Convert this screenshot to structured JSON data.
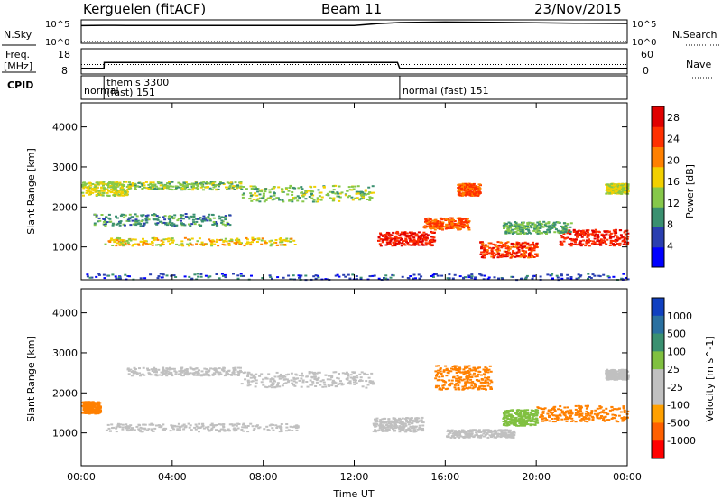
{
  "header": {
    "station": "Kerguelen (fitACF)",
    "beam": "Beam 11",
    "date": "23/Nov/2015"
  },
  "panels": {
    "nsky_label": "N.Sky",
    "nsearch_label": "N.Search",
    "nsky_ticks": [
      "10^5",
      "10^0"
    ],
    "nsearch_ticks": [
      "10^5",
      "10^0"
    ],
    "freq_label": [
      "Freq.",
      "[MHz]"
    ],
    "freq_ticks": [
      "18",
      "8"
    ],
    "nave_label": "Nave",
    "nave_ticks": [
      "60",
      "0"
    ],
    "cpid_label": "CPID",
    "cpid_segments": [
      {
        "label": "normal",
        "start_hour": 0.0,
        "end_hour": 1.0
      },
      {
        "label": "themis 3300",
        "label2": "(fast) 151",
        "start_hour": 1.0,
        "end_hour": 14.0
      },
      {
        "label": "normal (fast) 151",
        "start_hour": 14.0,
        "end_hour": 24.0
      }
    ]
  },
  "colors": {
    "power_scale": [
      "#0000ff",
      "#2a3fb0",
      "#3a9070",
      "#86c84a",
      "#f2d000",
      "#ff8000",
      "#ff3000",
      "#e00000"
    ],
    "velocity_scale": [
      "#1040c0",
      "#2a70a0",
      "#3a9070",
      "#80c040",
      "#c0c0c0",
      "#c0c0c0",
      "#ffa000",
      "#ff6000",
      "#ff0000"
    ],
    "ground_scatter": "#c0c0c0"
  },
  "chart_data": [
    {
      "type": "line",
      "title": "N.Sky / N.Search",
      "x": [
        0,
        1,
        2,
        4,
        6,
        8,
        10,
        12,
        13,
        14,
        16,
        18,
        20,
        22,
        24
      ],
      "series": [
        {
          "name": "N.Sky",
          "values": [
            10000,
            12000,
            11000,
            11000,
            11000,
            11000,
            11000,
            11000,
            30000,
            60000,
            80000,
            70000,
            50000,
            40000,
            35000
          ]
        },
        {
          "name": "N.Search",
          "values": [
            1,
            1,
            1,
            1,
            1,
            1,
            1,
            1,
            1,
            1,
            1,
            1,
            1,
            1,
            1
          ]
        }
      ],
      "ylabel": "N.Sky",
      "yscale": "log"
    },
    {
      "type": "line",
      "title": "Freq. / Nave",
      "x": [
        0,
        1,
        1.01,
        13.9,
        14,
        24
      ],
      "series": [
        {
          "name": "Freq.",
          "values": [
            10,
            10,
            12.5,
            12.5,
            10,
            10
          ]
        },
        {
          "name": "Nave",
          "values": [
            22,
            22,
            22,
            22,
            22,
            22
          ]
        }
      ],
      "ylabel": "Freq. [MHz]",
      "ylim": [
        8,
        18
      ],
      "y2lim": [
        0,
        60
      ]
    },
    {
      "type": "heatmap",
      "title": "Power",
      "xlabel": "",
      "ylabel": "Slant Range [km]",
      "xlim": [
        0,
        24
      ],
      "ylim": [
        180,
        4600
      ],
      "xticks": [
        "00:00",
        "04:00",
        "08:00",
        "12:00",
        "16:00",
        "20:00",
        "00:00"
      ],
      "yticks": [
        1000,
        2000,
        3000,
        4000
      ],
      "colorbar_label": "Power [dB]",
      "colorbar_ticks": [
        4,
        8,
        12,
        16,
        20,
        24,
        28
      ],
      "colorbar_range": [
        0,
        30
      ],
      "features": [
        {
          "x0": 0.0,
          "x1": 2.0,
          "y0": 2300,
          "y1": 2650,
          "value": 16
        },
        {
          "x0": 2.0,
          "x1": 7.0,
          "y0": 2450,
          "y1": 2650,
          "value": 14
        },
        {
          "x0": 7.0,
          "x1": 12.8,
          "y0": 2150,
          "y1": 2550,
          "value": 14
        },
        {
          "x0": 0.5,
          "x1": 6.5,
          "y0": 1550,
          "y1": 1850,
          "value": 10
        },
        {
          "x0": 1.0,
          "x1": 9.5,
          "y0": 1050,
          "y1": 1250,
          "value": 18
        },
        {
          "x0": 13.0,
          "x1": 15.5,
          "y0": 1050,
          "y1": 1400,
          "value": 28
        },
        {
          "x0": 15.0,
          "x1": 17.0,
          "y0": 1450,
          "y1": 1750,
          "value": 24
        },
        {
          "x0": 16.5,
          "x1": 17.5,
          "y0": 2300,
          "y1": 2600,
          "value": 24
        },
        {
          "x0": 17.5,
          "x1": 20.0,
          "y0": 750,
          "y1": 1150,
          "value": 26
        },
        {
          "x0": 21.0,
          "x1": 24.0,
          "y0": 1050,
          "y1": 1450,
          "value": 28
        },
        {
          "x0": 18.5,
          "x1": 21.5,
          "y0": 1350,
          "y1": 1650,
          "value": 12
        },
        {
          "x0": 23.0,
          "x1": 24.0,
          "y0": 2350,
          "y1": 2600,
          "value": 16
        },
        {
          "x0": 0.0,
          "x1": 24.0,
          "y0": 200,
          "y1": 350,
          "value": 6
        }
      ]
    },
    {
      "type": "heatmap",
      "title": "Velocity",
      "xlabel": "Time UT",
      "ylabel": "Slant Range [km]",
      "xlim": [
        0,
        24
      ],
      "ylim": [
        180,
        4600
      ],
      "xticks": [
        "00:00",
        "04:00",
        "08:00",
        "12:00",
        "16:00",
        "20:00",
        "00:00"
      ],
      "yticks": [
        1000,
        2000,
        3000,
        4000
      ],
      "colorbar_label": "Velocity [m s^-1]",
      "colorbar_ticks": [
        "1000",
        "500",
        "100",
        "25",
        "-25",
        "-100",
        "-500",
        "-1000"
      ],
      "features": [
        {
          "x0": 0.0,
          "x1": 0.8,
          "y0": 1500,
          "y1": 1800,
          "value": -300
        },
        {
          "x0": 2.0,
          "x1": 7.0,
          "y0": 2450,
          "y1": 2650,
          "value": 0
        },
        {
          "x0": 7.0,
          "x1": 12.8,
          "y0": 2150,
          "y1": 2550,
          "value": 0
        },
        {
          "x0": 1.0,
          "x1": 9.5,
          "y0": 1050,
          "y1": 1250,
          "value": 0
        },
        {
          "x0": 12.8,
          "x1": 15.0,
          "y0": 1050,
          "y1": 1400,
          "value": 0
        },
        {
          "x0": 15.5,
          "x1": 18.0,
          "y0": 2100,
          "y1": 2700,
          "value": -150
        },
        {
          "x0": 16.0,
          "x1": 19.0,
          "y0": 900,
          "y1": 1100,
          "value": 0
        },
        {
          "x0": 18.5,
          "x1": 20.0,
          "y0": 1200,
          "y1": 1600,
          "value": 150
        },
        {
          "x0": 20.0,
          "x1": 24.0,
          "y0": 1300,
          "y1": 1700,
          "value": -200
        },
        {
          "x0": 23.0,
          "x1": 24.0,
          "y0": 2350,
          "y1": 2600,
          "value": 0
        }
      ]
    }
  ],
  "time_axis_label": "Time UT"
}
